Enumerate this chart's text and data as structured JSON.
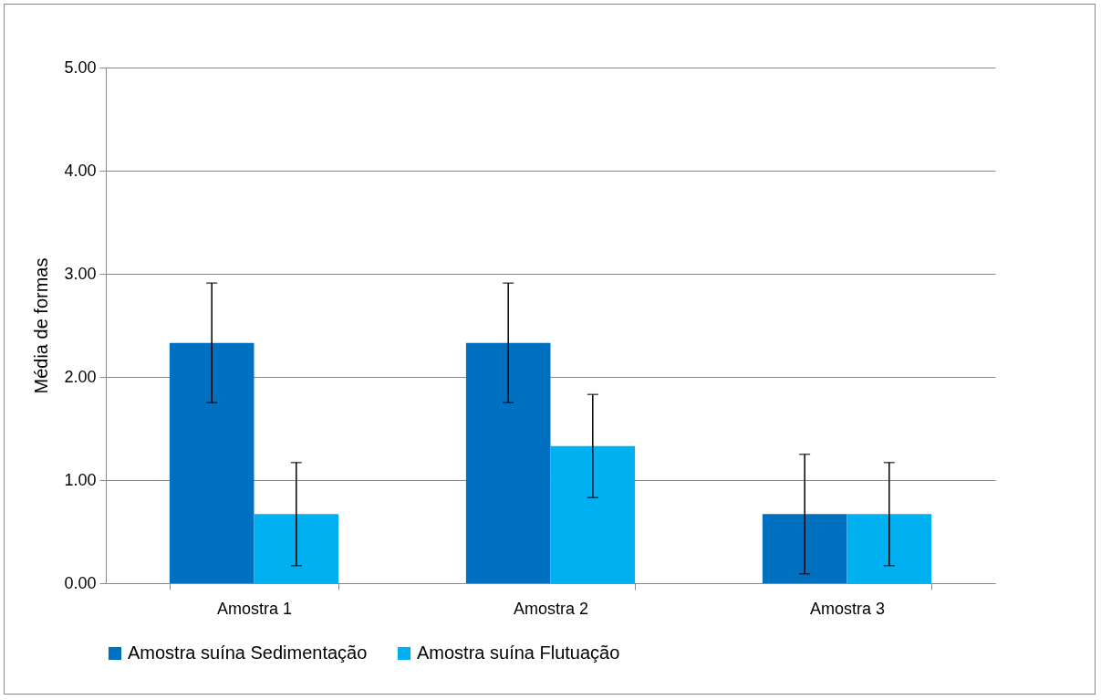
{
  "chart_data": {
    "type": "bar",
    "ylabel": "Média de formas",
    "categories": [
      "Amostra 1",
      "Amostra 2",
      "Amostra 3"
    ],
    "series": [
      {
        "name": "Amostra suína Sedimentação",
        "color": "#0070c0",
        "values": [
          2.33,
          2.33,
          0.67
        ],
        "errors": [
          0.58,
          0.58,
          0.58
        ]
      },
      {
        "name": "Amostra suína Flutuação",
        "color": "#00b0f0",
        "values": [
          0.67,
          1.33,
          0.67
        ],
        "errors": [
          0.5,
          0.5,
          0.5
        ]
      }
    ],
    "ylim": [
      0,
      5
    ],
    "yticks": [
      {
        "value": 0,
        "label": "0.00"
      },
      {
        "value": 1,
        "label": "1.00"
      },
      {
        "value": 2,
        "label": "2.00"
      },
      {
        "value": 3,
        "label": "3.00"
      },
      {
        "value": 4,
        "label": "4.00"
      },
      {
        "value": 5,
        "label": "5.00"
      }
    ],
    "grid": "y",
    "legend": "bottom"
  }
}
